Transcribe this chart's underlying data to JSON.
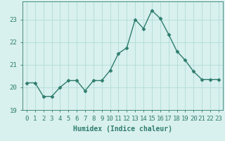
{
  "x": [
    0,
    1,
    2,
    3,
    4,
    5,
    6,
    7,
    8,
    9,
    10,
    11,
    12,
    13,
    14,
    15,
    16,
    17,
    18,
    19,
    20,
    21,
    22,
    23
  ],
  "y": [
    20.2,
    20.2,
    19.6,
    19.6,
    20.0,
    20.3,
    20.3,
    19.85,
    20.3,
    20.3,
    20.75,
    21.5,
    21.75,
    23.0,
    22.6,
    23.4,
    23.05,
    22.35,
    21.6,
    21.2,
    20.7,
    20.35,
    20.35,
    20.35
  ],
  "line_color": "#2e7d6e",
  "marker": "D",
  "marker_size": 2.5,
  "bg_color": "#d8f0ee",
  "grid_color": "#aad8d4",
  "xlabel": "Humidex (Indice chaleur)",
  "xlim": [
    -0.5,
    23.5
  ],
  "ylim": [
    19.0,
    23.8
  ],
  "yticks": [
    19,
    20,
    21,
    22,
    23
  ],
  "xlabel_fontsize": 7,
  "tick_fontsize": 6.5,
  "line_width": 1.0
}
